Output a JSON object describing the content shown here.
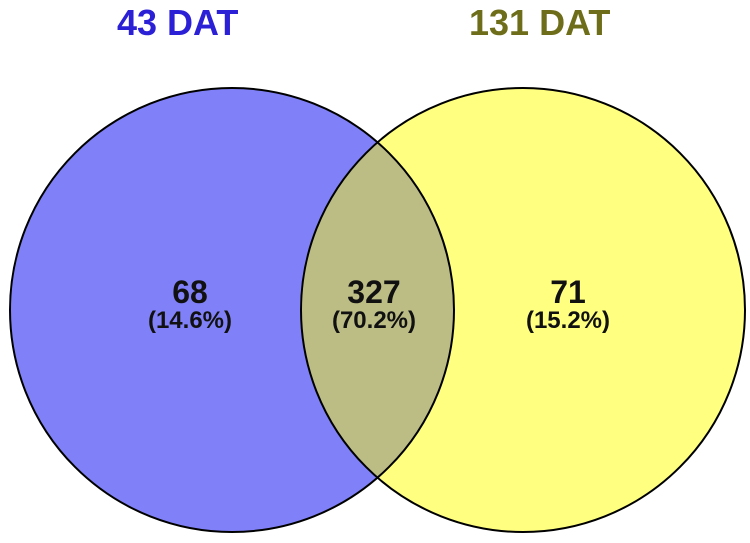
{
  "sets": {
    "left": {
      "title": "43 DAT",
      "title_color": "#2b20d6",
      "fill": "#8080f8"
    },
    "right": {
      "title": "131 DAT",
      "title_color": "#6e6e1a",
      "fill": "#ffff80"
    },
    "overlap_fill": "#bcbc85",
    "outline_color": "#000000"
  },
  "regions": {
    "left_only": {
      "count": "68",
      "percent": "(14.6%)"
    },
    "overlap": {
      "count": "327",
      "percent": "(70.2%)"
    },
    "right_only": {
      "count": "71",
      "percent": "(15.2%)"
    }
  }
}
